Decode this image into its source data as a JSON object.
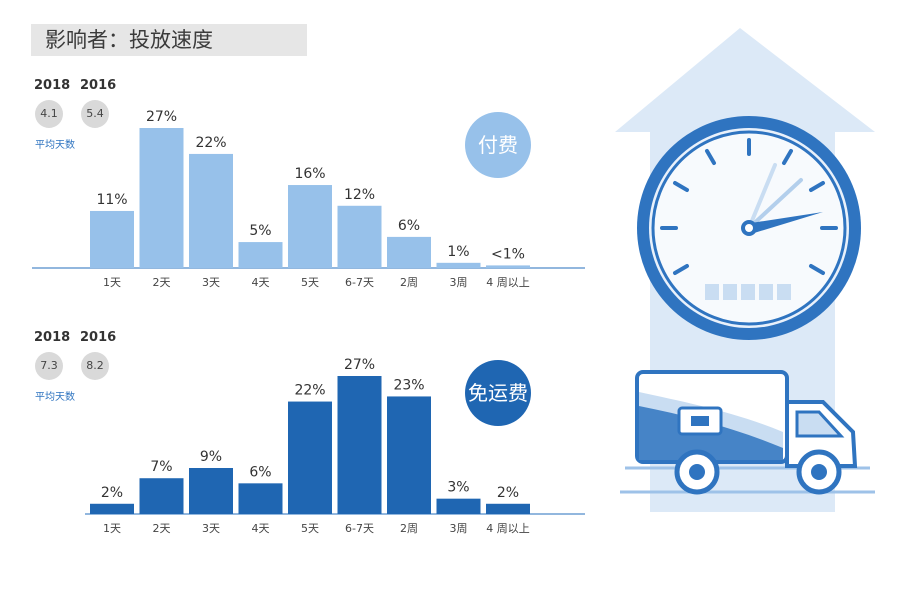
{
  "title": "影响者：投放速度",
  "avg_label": "平均天数",
  "colors": {
    "paid": "#97c1ea",
    "free": "#1f66b2",
    "accent": "#2f74c0",
    "bubble": "#d9d9d9"
  },
  "panels": [
    {
      "badge": "付费",
      "years": [
        {
          "year": "2018",
          "value": "4.1"
        },
        {
          "year": "2016",
          "value": "5.4"
        }
      ]
    },
    {
      "badge": "免运费",
      "years": [
        {
          "year": "2018",
          "value": "7.3"
        },
        {
          "year": "2016",
          "value": "8.2"
        }
      ]
    }
  ],
  "chart_data": [
    {
      "type": "bar",
      "categories": [
        "1天",
        "2天",
        "3天",
        "4天",
        "5天",
        "6-7天",
        "2周",
        "3周",
        "4 周以上"
      ],
      "values": [
        11,
        27,
        22,
        5,
        16,
        12,
        6,
        1,
        0.5
      ],
      "labels": [
        "11%",
        "27%",
        "22%",
        "5%",
        "16%",
        "12%",
        "6%",
        "1%",
        "<1%"
      ],
      "title": "付费",
      "xlabel": "",
      "ylabel": "",
      "ylim": [
        0,
        27
      ]
    },
    {
      "type": "bar",
      "categories": [
        "1天",
        "2天",
        "3天",
        "4天",
        "5天",
        "6-7天",
        "2周",
        "3周",
        "4 周以上"
      ],
      "values": [
        2,
        7,
        9,
        6,
        22,
        27,
        23,
        3,
        2
      ],
      "labels": [
        "2%",
        "7%",
        "9%",
        "6%",
        "22%",
        "27%",
        "23%",
        "3%",
        "2%"
      ],
      "title": "免运费",
      "xlabel": "",
      "ylabel": "",
      "ylim": [
        0,
        27
      ]
    }
  ]
}
